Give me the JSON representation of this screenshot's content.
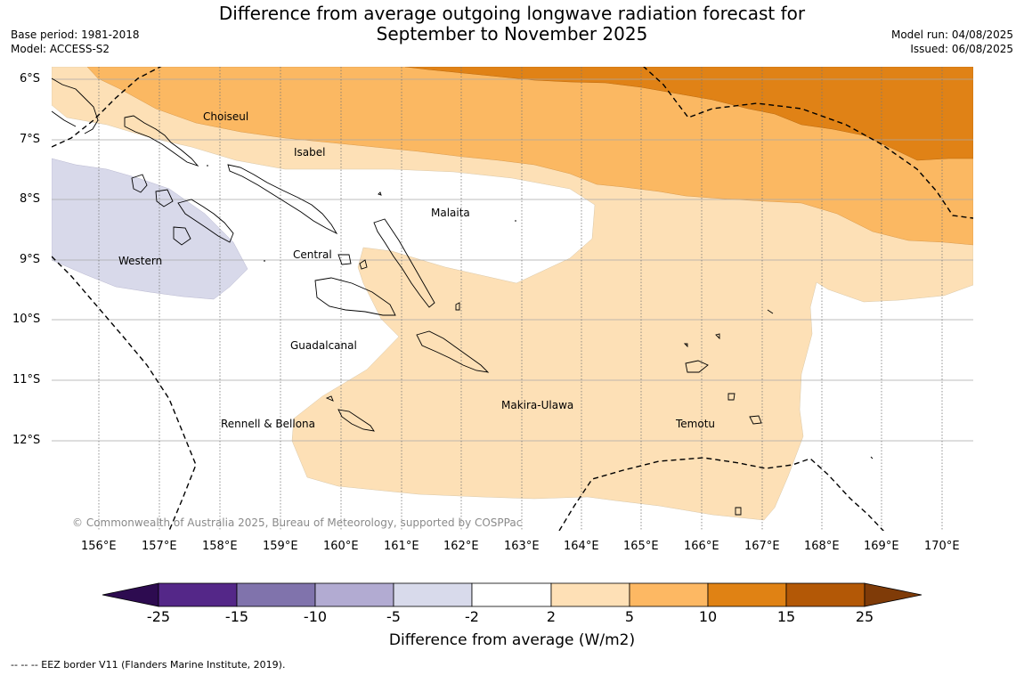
{
  "header": {
    "title_line1": "Difference from average outgoing longwave radiation forecast for",
    "title_line2": "September to November 2025",
    "base_period": "Base period: 1981-2018",
    "model": "Model: ACCESS-S2",
    "model_run": "Model run: 04/08/2025",
    "issued": "Issued: 06/08/2025"
  },
  "map": {
    "lat_labels": [
      "6°S",
      "7°S",
      "8°S",
      "9°S",
      "10°S",
      "11°S",
      "12°S"
    ],
    "lon_labels": [
      "156°E",
      "157°E",
      "158°E",
      "159°E",
      "160°E",
      "161°E",
      "162°E",
      "163°E",
      "164°E",
      "165°E",
      "166°E",
      "167°E",
      "168°E",
      "169°E",
      "170°E"
    ],
    "place_labels": [
      "Choiseul",
      "Isabel",
      "Malaita",
      "Western",
      "Central",
      "Guadalcanal",
      "Makira-Ulawa",
      "Rennell & Bellona",
      "Temotu"
    ],
    "copyright": "© Commonwealth of Australia 2025, Bureau of Meteorology, supported by COSPPac",
    "colors": {
      "minus5_to_minus2": "#d8d9ea",
      "plus2_to_plus5": "#fde0b6",
      "plus5_to_plus10": "#fbb862",
      "plus10_to_plus15": "#e08216"
    }
  },
  "colorbar": {
    "ticks": [
      "-25",
      "-15",
      "-10",
      "-5",
      "-2",
      "2",
      "5",
      "10",
      "15",
      "25"
    ],
    "colors": [
      "#2d0b50",
      "#542788",
      "#8073ac",
      "#b2abd2",
      "#d8daeb",
      "#ffffff",
      "#fee0b6",
      "#fdb863",
      "#e08214",
      "#b35806",
      "#7f3b08"
    ],
    "label": "Difference from average (W/m2)"
  },
  "footnote": "--  --  -- EEZ border V11 (Flanders Marine Institute, 2019)."
}
